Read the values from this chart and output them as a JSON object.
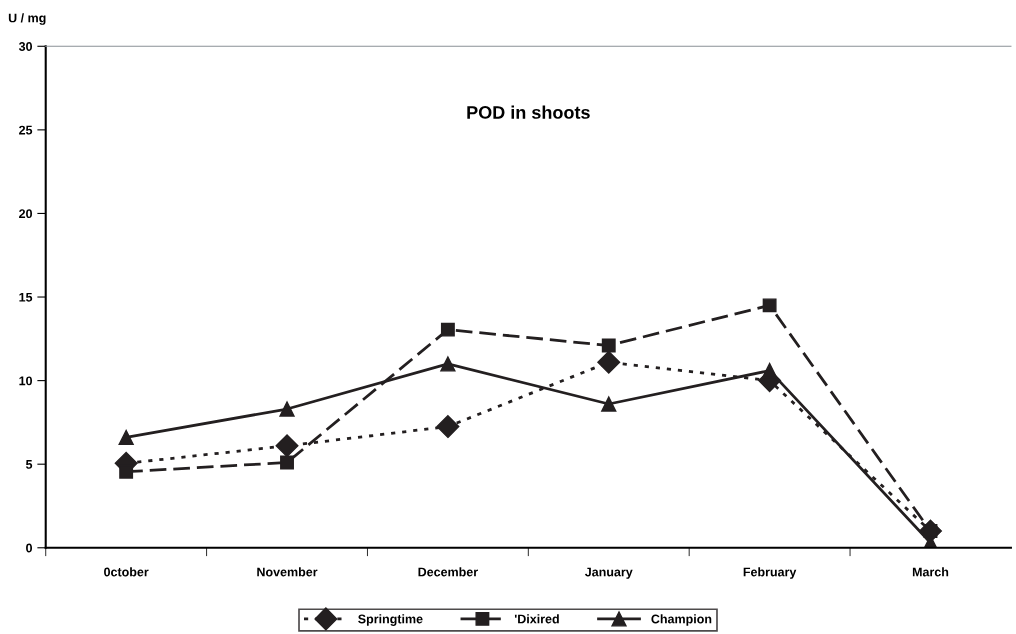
{
  "chart_data": {
    "type": "line",
    "title": "POD in shoots",
    "ylabel": "U / mg",
    "categories": [
      "0ctober",
      "November",
      "December",
      "January",
      "February",
      "March"
    ],
    "series": [
      {
        "name": "Springtime",
        "color": "#231f20",
        "marker": "diamond",
        "line_style": "dotted",
        "values": [
          5.05,
          6.1,
          7.25,
          11.1,
          10.0,
          1.0
        ]
      },
      {
        "name": "'Dixired",
        "color": "#231f20",
        "marker": "square",
        "line_style": "dashed",
        "values": [
          4.55,
          5.1,
          13.05,
          12.1,
          14.5,
          1.0
        ]
      },
      {
        "name": "Champion",
        "color": "#231f20",
        "marker": "triangle",
        "line_style": "solid",
        "values": [
          6.6,
          8.3,
          11.0,
          8.6,
          10.6,
          0.3
        ]
      }
    ],
    "ylim": [
      0,
      30
    ],
    "yticks": [
      0,
      5,
      10,
      15,
      20,
      25,
      30
    ],
    "grid": false,
    "legend": "bottom"
  }
}
